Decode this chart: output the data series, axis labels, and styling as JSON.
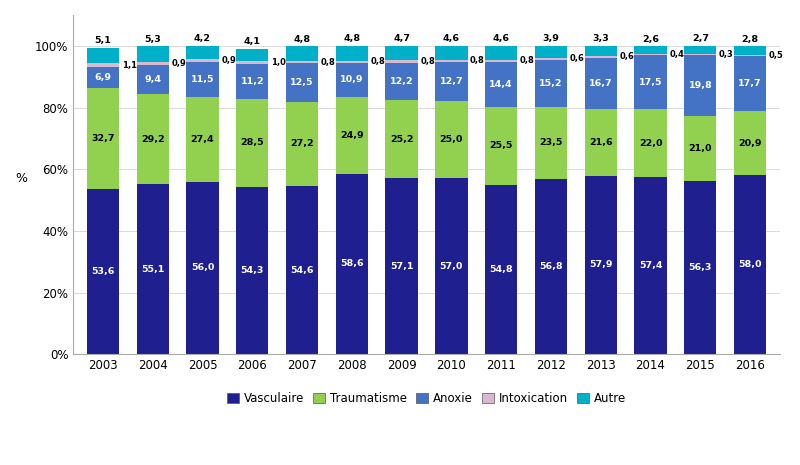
{
  "years": [
    2003,
    2004,
    2005,
    2006,
    2007,
    2008,
    2009,
    2010,
    2011,
    2012,
    2013,
    2014,
    2015,
    2016
  ],
  "vasculaire": [
    53.6,
    55.1,
    56.0,
    54.3,
    54.6,
    58.6,
    57.1,
    57.0,
    54.8,
    56.8,
    57.9,
    57.4,
    56.3,
    58.0
  ],
  "traumatisme": [
    32.7,
    29.2,
    27.4,
    28.5,
    27.2,
    24.9,
    25.2,
    25.0,
    25.5,
    23.5,
    21.6,
    22.0,
    21.0,
    20.9
  ],
  "anoxie": [
    6.9,
    9.4,
    11.5,
    11.2,
    12.5,
    10.9,
    12.2,
    12.7,
    14.4,
    15.2,
    16.7,
    17.5,
    19.8,
    17.7
  ],
  "intoxication": [
    1.1,
    0.9,
    0.9,
    1.0,
    0.8,
    0.8,
    0.8,
    0.8,
    0.8,
    0.6,
    0.6,
    0.4,
    0.3,
    0.5
  ],
  "autre": [
    5.1,
    5.3,
    4.2,
    4.1,
    4.8,
    4.8,
    4.7,
    4.6,
    4.6,
    3.9,
    3.3,
    2.6,
    2.7,
    2.8
  ],
  "colors": {
    "vasculaire": "#1F1F8F",
    "traumatisme": "#92D050",
    "anoxie": "#4472C4",
    "intoxication": "#D9B8D0",
    "autre": "#00B0C8"
  },
  "ylabel": "%",
  "yticks": [
    0,
    20,
    40,
    60,
    80,
    100
  ],
  "yticklabels": [
    "0%",
    "20%",
    "40%",
    "60%",
    "80%",
    "100%"
  ],
  "legend_labels": [
    "Vasculaire",
    "Traumatisme",
    "Anoxie",
    "Intoxication",
    "Autre"
  ],
  "bar_width": 0.65
}
